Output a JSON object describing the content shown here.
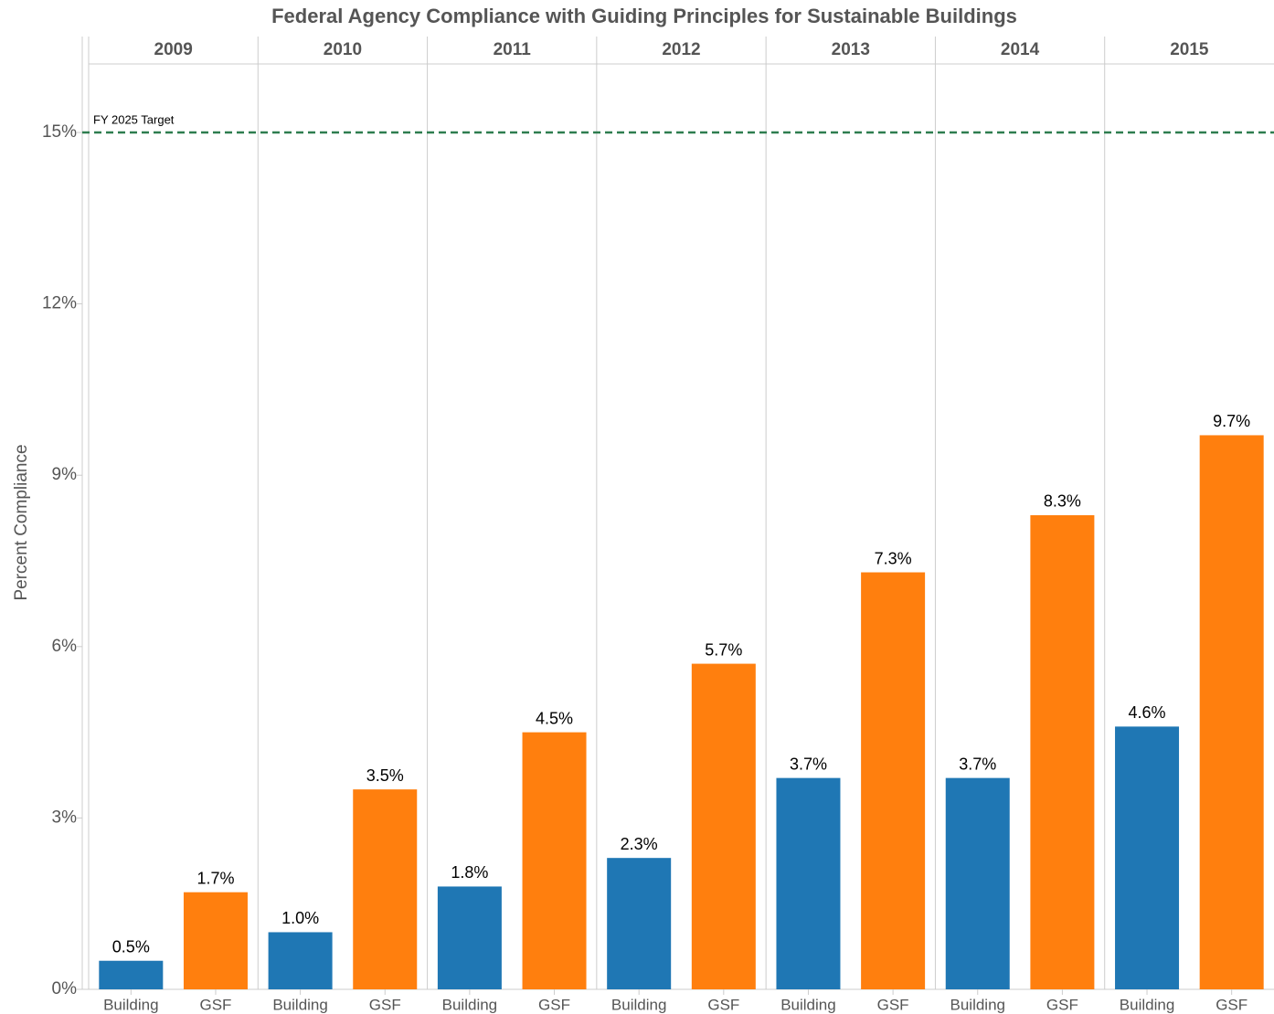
{
  "chart_data": {
    "type": "bar",
    "title": "Federal Agency Compliance with Guiding Principles for Sustainable Buildings",
    "y_axis_label": "Percent Compliance",
    "categories": [
      "2009",
      "2010",
      "2011",
      "2012",
      "2013",
      "2014",
      "2015"
    ],
    "series": [
      {
        "name": "Building",
        "color": "#1f77b4",
        "values": [
          0.5,
          1.0,
          1.8,
          2.3,
          3.7,
          3.7,
          4.6
        ],
        "value_labels": [
          "0.5%",
          "1.0%",
          "1.8%",
          "2.3%",
          "3.7%",
          "3.7%",
          "4.6%"
        ]
      },
      {
        "name": "GSF",
        "color": "#ff7f0e",
        "values": [
          1.7,
          3.5,
          4.5,
          5.7,
          7.3,
          8.3,
          9.7
        ],
        "value_labels": [
          "1.7%",
          "3.5%",
          "4.5%",
          "5.7%",
          "7.3%",
          "8.3%",
          "9.7%"
        ]
      }
    ],
    "ylim": [
      0,
      16.2
    ],
    "yticks": [
      {
        "value": 0,
        "label": "0%"
      },
      {
        "value": 3,
        "label": "3%"
      },
      {
        "value": 6,
        "label": "6%"
      },
      {
        "value": 9,
        "label": "9%"
      },
      {
        "value": 12,
        "label": "12%"
      },
      {
        "value": 15,
        "label": "15%"
      }
    ],
    "grid": false,
    "annotations": [
      {
        "label": "FY 2025 Target",
        "value": 15,
        "color": "#2e7d4f"
      }
    ]
  }
}
